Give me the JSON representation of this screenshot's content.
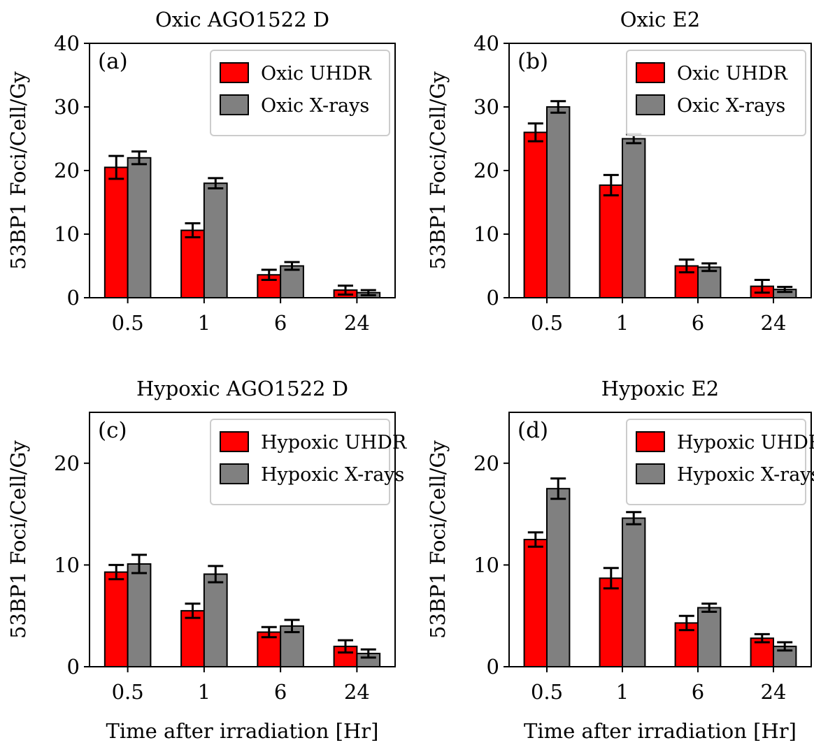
{
  "chart_data": [
    {
      "type": "bar",
      "panel_label": "(a)",
      "title": "Oxic AGO1522 D",
      "xlabel": "",
      "ylabel": "53BP1 Foci/Cell/Gy",
      "categories": [
        "0.5",
        "1",
        "6",
        "24"
      ],
      "ylim": [
        0,
        40
      ],
      "yticks": [
        0,
        10,
        20,
        30,
        40
      ],
      "legend_position": "top-right",
      "series": [
        {
          "name": "Oxic UHDR",
          "color": "#ff0000",
          "values": [
            20.5,
            10.6,
            3.6,
            1.2
          ],
          "errors": [
            1.8,
            1.1,
            0.8,
            0.7
          ]
        },
        {
          "name": "Oxic X-rays",
          "color": "#808080",
          "values": [
            22.0,
            18.0,
            5.0,
            0.8
          ],
          "errors": [
            1.0,
            0.8,
            0.6,
            0.4
          ]
        }
      ]
    },
    {
      "type": "bar",
      "panel_label": "(b)",
      "title": "Oxic E2",
      "xlabel": "",
      "ylabel": "53BP1 Foci/Cell/Gy",
      "categories": [
        "0.5",
        "1",
        "6",
        "24"
      ],
      "ylim": [
        0,
        40
      ],
      "yticks": [
        0,
        10,
        20,
        30,
        40
      ],
      "legend_position": "top-right",
      "series": [
        {
          "name": "Oxic UHDR",
          "color": "#ff0000",
          "values": [
            26.0,
            17.7,
            5.0,
            1.8
          ],
          "errors": [
            1.4,
            1.6,
            1.0,
            1.0
          ]
        },
        {
          "name": "Oxic X-rays",
          "color": "#808080",
          "values": [
            30.0,
            25.0,
            4.8,
            1.3
          ],
          "errors": [
            0.9,
            0.7,
            0.6,
            0.4
          ]
        }
      ]
    },
    {
      "type": "bar",
      "panel_label": "(c)",
      "title": "Hypoxic AGO1522 D",
      "xlabel": "Time after irradiation [Hr]",
      "ylabel": "53BP1 Foci/Cell/Gy",
      "categories": [
        "0.5",
        "1",
        "6",
        "24"
      ],
      "ylim": [
        0,
        25
      ],
      "yticks": [
        0,
        10,
        20
      ],
      "legend_position": "top-right",
      "series": [
        {
          "name": "Hypoxic UHDR",
          "color": "#ff0000",
          "values": [
            9.3,
            5.5,
            3.4,
            2.0
          ],
          "errors": [
            0.7,
            0.7,
            0.5,
            0.6
          ]
        },
        {
          "name": "Hypoxic X-rays",
          "color": "#808080",
          "values": [
            10.1,
            9.1,
            4.0,
            1.3
          ],
          "errors": [
            0.9,
            0.8,
            0.6,
            0.4
          ]
        }
      ]
    },
    {
      "type": "bar",
      "panel_label": "(d)",
      "title": "Hypoxic E2",
      "xlabel": "Time after irradiation [Hr]",
      "ylabel": "53BP1 Foci/Cell/Gy",
      "categories": [
        "0.5",
        "1",
        "6",
        "24"
      ],
      "ylim": [
        0,
        25
      ],
      "yticks": [
        0,
        10,
        20
      ],
      "legend_position": "top-right",
      "series": [
        {
          "name": "Hypoxic UHDR",
          "color": "#ff0000",
          "values": [
            12.5,
            8.7,
            4.3,
            2.8
          ],
          "errors": [
            0.7,
            1.0,
            0.7,
            0.4
          ]
        },
        {
          "name": "Hypoxic X-rays",
          "color": "#808080",
          "values": [
            17.5,
            14.6,
            5.8,
            2.0
          ],
          "errors": [
            1.0,
            0.6,
            0.4,
            0.4
          ]
        }
      ]
    }
  ]
}
